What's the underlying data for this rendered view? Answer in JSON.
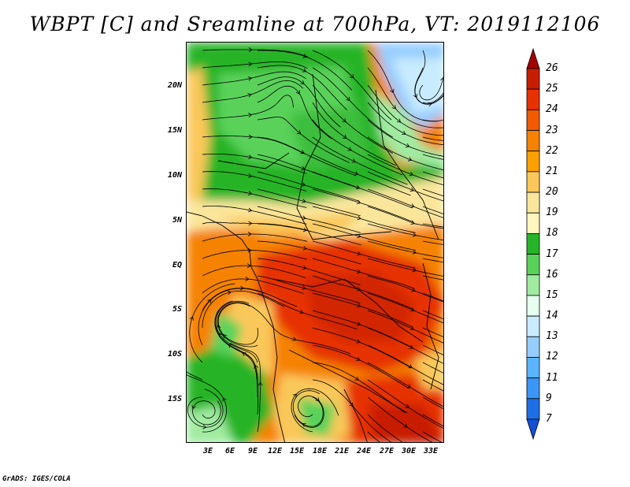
{
  "title": "WBPT [C] and Sreamline at 700hPa, VT: 2019112106",
  "credit": "GrADS: IGES/COLA",
  "map": {
    "lat_labels": [
      "20N",
      "15N",
      "10N",
      "5N",
      "EQ",
      "5S",
      "10S",
      "15S"
    ],
    "lon_labels": [
      "3E",
      "6E",
      "9E",
      "12E",
      "15E",
      "18E",
      "21E",
      "24E",
      "27E",
      "30E",
      "33E"
    ]
  },
  "colorbar": {
    "levels": [
      "26",
      "25",
      "24",
      "23",
      "22",
      "21",
      "20",
      "19",
      "18",
      "17",
      "16",
      "15",
      "14",
      "13",
      "12",
      "11",
      "9",
      "7"
    ],
    "colors": [
      "#a50000",
      "#c81e00",
      "#e63200",
      "#f05a00",
      "#f58200",
      "#faa000",
      "#fac85a",
      "#fae69b",
      "#fff5be",
      "#28b428",
      "#5ad25a",
      "#a0eba0",
      "#e6fff0",
      "#c8ebff",
      "#96cdff",
      "#5ab4ff",
      "#3c96f5",
      "#1e6ee6",
      "#1450d2"
    ]
  },
  "legend": {
    "accent_colors": {
      "warm": "#e85a0f",
      "cool": "#3c96f5",
      "green": "#3cb43c"
    }
  }
}
